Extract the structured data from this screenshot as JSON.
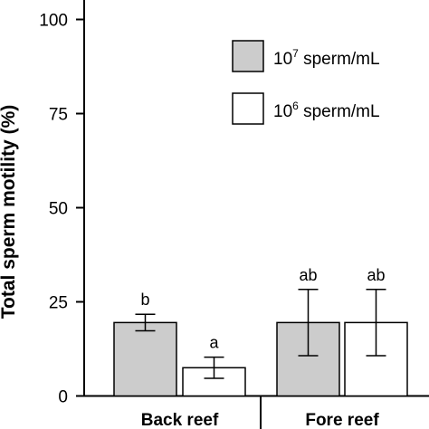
{
  "chart_data": {
    "type": "bar",
    "ylabel": "Total sperm motility (%)",
    "ylim": [
      0,
      100
    ],
    "yticks": [
      0,
      25,
      50,
      75,
      100
    ],
    "groups": [
      "Back reef",
      "Fore reef"
    ],
    "legend_placement": "top-right",
    "series": [
      {
        "name_base": "10",
        "name_exp": "7",
        "name_unit": " sperm/mL",
        "color": "#cccccc",
        "values": [
          19.5,
          19.5
        ],
        "errors": [
          2.2,
          8.8
        ],
        "letters": [
          "b",
          "ab"
        ]
      },
      {
        "name_base": "10",
        "name_exp": "6",
        "name_unit": " sperm/mL",
        "color": "#ffffff",
        "values": [
          7.5,
          19.5
        ],
        "errors": [
          2.8,
          8.8
        ],
        "letters": [
          "a",
          "ab"
        ]
      }
    ],
    "grid": false
  }
}
